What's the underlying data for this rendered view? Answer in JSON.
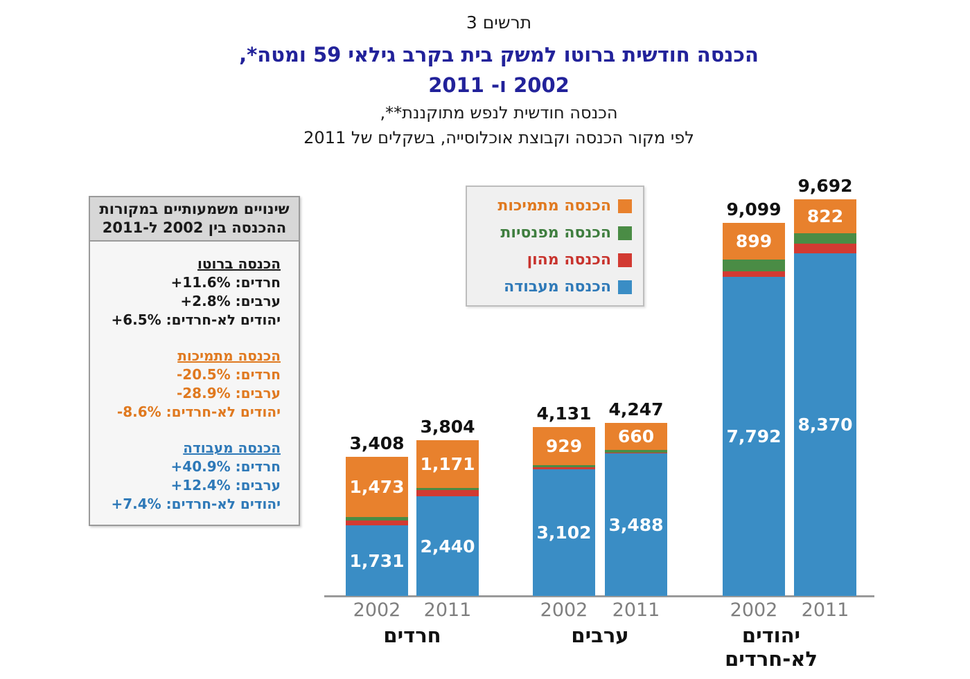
{
  "header": {
    "figure_label": "תרשים 3",
    "title_line1": "הכנסה חודשית ברוטו למשק בית בקרב גילאי 59 ומטה*,",
    "title_line2": "2002 ו- 2011",
    "subtitle_line1": "הכנסה חודשית לנפש מתוקננת**,",
    "subtitle_line2": "לפי מקור הכנסה וקבוצת אוכלוסייה, בשקלים של 2011"
  },
  "info_panel": {
    "header_line1": "שינויים משמעותיים במקורות",
    "header_line2": "ההכנסה בין 2002 ל-2011",
    "sections": [
      {
        "title": "הכנסה ברוטו",
        "color": "#1a1a1a",
        "rows": [
          {
            "label": "חרדים:",
            "value": "+11.6%"
          },
          {
            "label": "ערבים:",
            "value": "+2.8%"
          },
          {
            "label": "יהודים לא-חרדים:",
            "value": "+6.5%"
          }
        ]
      },
      {
        "title": "הכנסה מתמיכות",
        "color": "#e0791f",
        "rows": [
          {
            "label": "חרדים:",
            "value": "-20.5%"
          },
          {
            "label": "ערבים:",
            "value": "-28.9%"
          },
          {
            "label": "יהודים לא-חרדים:",
            "value": "-8.6%"
          }
        ]
      },
      {
        "title": "הכנסה מעבודה",
        "color": "#2e79b8",
        "rows": [
          {
            "label": "חרדים:",
            "value": "+40.9%"
          },
          {
            "label": "ערבים:",
            "value": "+12.4%"
          },
          {
            "label": "יהודים לא-חרדים:",
            "value": "+7.4%"
          }
        ]
      }
    ]
  },
  "legend": {
    "items": [
      {
        "key": "support",
        "label": "הכנסה מתמיכות",
        "color": "#e8812d",
        "text_color": "#e0791f"
      },
      {
        "key": "pension",
        "label": "הכנסה מפנסיות",
        "color": "#4a8c45",
        "text_color": "#3f7e3f"
      },
      {
        "key": "capital",
        "label": "הכנסה מהון",
        "color": "#d23a32",
        "text_color": "#c8332d"
      },
      {
        "key": "work",
        "label": "הכנסה מעבודה",
        "color": "#3a8dc5",
        "text_color": "#2e79b8"
      }
    ]
  },
  "colors": {
    "bar_work": "#3a8dc5",
    "bar_capital": "#d23a32",
    "bar_pension": "#4a8c45",
    "bar_support": "#e8812d",
    "title_blue": "#22229a",
    "axis_gray": "#9a9a9a",
    "year_label_gray": "#7f7f7f"
  },
  "chart_data": {
    "type": "bar",
    "stacked": true,
    "ylim": [
      0,
      9692
    ],
    "series_order_bottom_to_top": [
      "work",
      "capital",
      "pension",
      "support"
    ],
    "series_names": {
      "work": "הכנסה מעבודה",
      "capital": "הכנסה מהון",
      "pension": "הכנסה מפנסיות",
      "support": "הכנסה מתמיכות"
    },
    "labeled_segments": [
      "work",
      "support"
    ],
    "groups": [
      {
        "name": "חרדים",
        "name_lines": [
          "חרדים"
        ],
        "bars": [
          {
            "year": "2002",
            "total": 3408,
            "work": 1731,
            "capital": 122,
            "pension": 82,
            "support": 1473
          },
          {
            "year": "2011",
            "total": 3804,
            "work": 2440,
            "capital": 150,
            "pension": 43,
            "support": 1171
          }
        ]
      },
      {
        "name": "ערבים",
        "name_lines": [
          "ערבים"
        ],
        "bars": [
          {
            "year": "2002",
            "total": 4131,
            "work": 3102,
            "capital": 50,
            "pension": 50,
            "support": 929
          },
          {
            "year": "2011",
            "total": 4247,
            "work": 3488,
            "capital": 25,
            "pension": 74,
            "support": 660
          }
        ]
      },
      {
        "name": "יהודים לא-חרדים",
        "name_lines": [
          "יהודים",
          "לא-חרדים"
        ],
        "bars": [
          {
            "year": "2002",
            "total": 9099,
            "work": 7792,
            "capital": 128,
            "pension": 280,
            "support": 899
          },
          {
            "year": "2011",
            "total": 9692,
            "work": 8370,
            "capital": 240,
            "pension": 260,
            "support": 822
          }
        ]
      }
    ]
  }
}
